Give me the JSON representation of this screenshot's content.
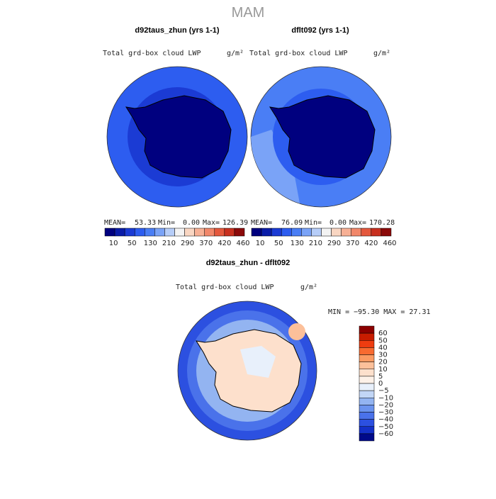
{
  "title": "MAM",
  "panels": [
    {
      "heading": "d92taus_zhun (yrs 1-1)",
      "field": "Total grd-box cloud LWP",
      "units": "g/m²",
      "mean_label": "MEAN=",
      "mean": "53.33",
      "min_label": "Min=",
      "min": "0.00",
      "max_label": "Max=",
      "max": "126.39"
    },
    {
      "heading": "dflt092 (yrs 1-1)",
      "field": "Total grd-box cloud LWP",
      "units": "g/m²",
      "mean_label": "MEAN=",
      "mean": "76.09",
      "min_label": "Min=",
      "min": "0.00",
      "max_label": "Max=",
      "max": "170.28"
    }
  ],
  "colorbar": {
    "colors": [
      "#00007f",
      "#0a1ca8",
      "#1b3bd4",
      "#2d5df0",
      "#4a7ef5",
      "#7aa3f7",
      "#b6cdf8",
      "#f3f3f3",
      "#f9d6c2",
      "#f7b095",
      "#f1876a",
      "#e4583d",
      "#c8301f",
      "#8c0a0a"
    ],
    "labels": [
      "10",
      "50",
      "130",
      "210",
      "290",
      "370",
      "420",
      "460"
    ]
  },
  "diff": {
    "heading": "d92taus_zhun - dflt092",
    "field": "Total grd-box cloud LWP",
    "units": "g/m²",
    "minmax": "MIN = −95.30 MAX =  27.31",
    "colorbar": {
      "colors": [
        "#8c0000",
        "#c81c00",
        "#ee3c10",
        "#f86a30",
        "#fb9a62",
        "#fcc09a",
        "#fde0cc",
        "#fdf1e8",
        "#e8f0fb",
        "#c2d6f6",
        "#93b4f1",
        "#6b93ee",
        "#4a72ea",
        "#2c50e0",
        "#1430c8",
        "#000a8a"
      ],
      "labels": [
        "60",
        "50",
        "40",
        "30",
        "20",
        "10",
        "5",
        "0",
        "−5",
        "−10",
        "−20",
        "−30",
        "−40",
        "−50",
        "−60"
      ]
    }
  }
}
